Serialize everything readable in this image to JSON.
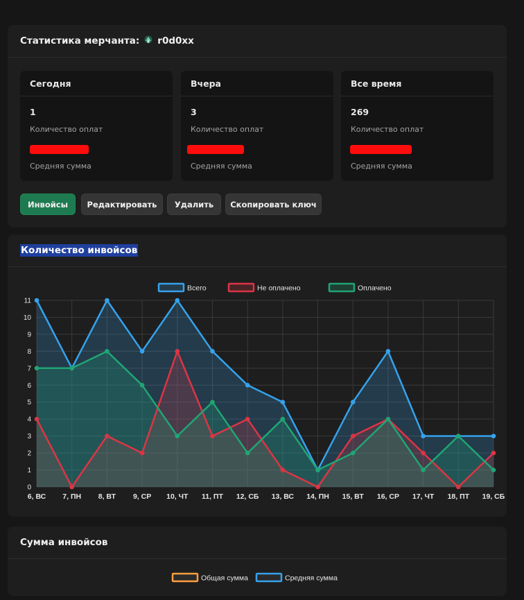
{
  "merchant": {
    "title": "Статистика мерчанта:",
    "name": "r0d0xx",
    "stats": [
      {
        "title": "Сегодня",
        "count": "1",
        "count_label": "Количество оплат",
        "avg_label": "Средняя сумма"
      },
      {
        "title": "Вчера",
        "count": "3",
        "count_label": "Количество оплат",
        "avg_label": "Средняя сумма"
      },
      {
        "title": "Все время",
        "count": "269",
        "count_label": "Количество оплат",
        "avg_label": "Средняя сумма"
      }
    ],
    "buttons": {
      "invoices": "Инвойсы",
      "edit": "Редактировать",
      "delete": "Удалить",
      "copy_key": "Скопировать ключ"
    }
  },
  "invoices_count": {
    "title": "Количество инвойсов"
  },
  "invoices_sum": {
    "title": "Сумма инвойсов",
    "legend": [
      "Общая сумма",
      "Средняя сумма"
    ]
  },
  "colors": {
    "total": "#36a2eb",
    "unpaid": "#dc3545",
    "paid": "#20a575",
    "sum_total": "#ff9f40",
    "sum_avg": "#36a2eb",
    "primary_button": "#1e7a50"
  },
  "chart_data": {
    "type": "line",
    "categories": [
      "6, ВС",
      "7, ПН",
      "8, ВТ",
      "9, СР",
      "10, ЧТ",
      "11, ПТ",
      "12, СБ",
      "13, ВС",
      "14, ПН",
      "15, ВТ",
      "16, СР",
      "17, ЧТ",
      "18, ПТ",
      "19, СБ"
    ],
    "series": [
      {
        "name": "Всего",
        "values": [
          11,
          7,
          11,
          8,
          11,
          8,
          6,
          5,
          1,
          5,
          8,
          3,
          3,
          3
        ]
      },
      {
        "name": "Не оплачено",
        "values": [
          4,
          0,
          3,
          2,
          8,
          3,
          4,
          1,
          0,
          3,
          4,
          2,
          0,
          2
        ]
      },
      {
        "name": "Оплачено",
        "values": [
          7,
          7,
          8,
          6,
          3,
          5,
          2,
          4,
          1,
          2,
          4,
          1,
          3,
          1
        ]
      }
    ],
    "ylim": [
      0,
      11
    ],
    "yticks": [
      0,
      1,
      2,
      3,
      4,
      5,
      6,
      7,
      8,
      9,
      10,
      11
    ],
    "grid": true,
    "legend_position": "top",
    "area_fill": true
  }
}
